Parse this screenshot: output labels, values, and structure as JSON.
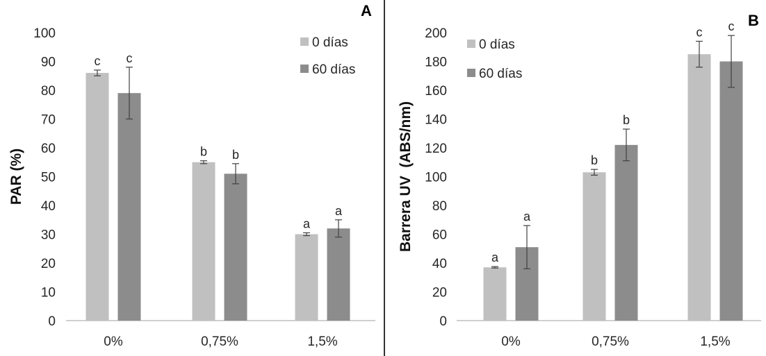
{
  "chart_data": [
    {
      "type": "bar",
      "panel_label": "A",
      "ylabel": "PAR (%)",
      "xlabel": "",
      "ylim": [
        0,
        100
      ],
      "ytick_step": 10,
      "categories": [
        "0%",
        "0,75%",
        "1,5%"
      ],
      "series": [
        {
          "name": "0 días",
          "color": "#c0c0c0",
          "values": [
            86,
            55,
            30
          ],
          "errors": [
            1,
            0.5,
            0.5
          ],
          "letters": [
            "c",
            "b",
            "a"
          ]
        },
        {
          "name": "60 días",
          "color": "#8c8c8c",
          "values": [
            79,
            51,
            32
          ],
          "errors": [
            9,
            3.5,
            3
          ],
          "letters": [
            "c",
            "b",
            "a"
          ]
        }
      ],
      "legend_position": "top-right",
      "grid": false
    },
    {
      "type": "bar",
      "panel_label": "B",
      "ylabel": "Barrera UV  (ABS/nm)",
      "xlabel": "",
      "ylim": [
        0,
        200
      ],
      "ytick_step": 20,
      "categories": [
        "0%",
        "0,75%",
        "1,5%"
      ],
      "series": [
        {
          "name": "0 días",
          "color": "#c0c0c0",
          "values": [
            37,
            103,
            185
          ],
          "errors": [
            0.5,
            2,
            9
          ],
          "letters": [
            "a",
            "b",
            "c"
          ]
        },
        {
          "name": "60 días",
          "color": "#8c8c8c",
          "values": [
            51,
            122,
            180
          ],
          "errors": [
            15,
            11,
            18
          ],
          "letters": [
            "a",
            "b",
            "c"
          ]
        }
      ],
      "legend_position": "top-left",
      "grid": false
    }
  ]
}
